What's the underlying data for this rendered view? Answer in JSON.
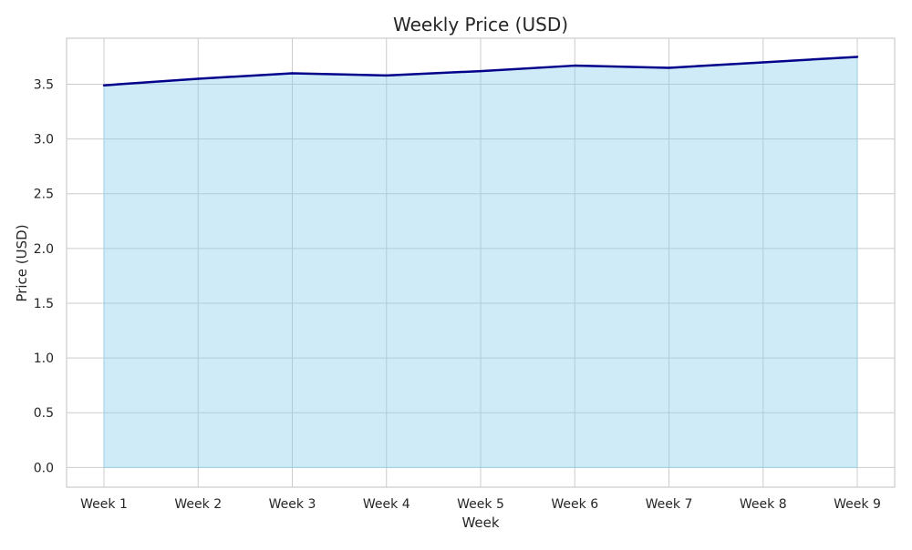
{
  "chart_data": {
    "type": "area",
    "title": "Weekly Price (USD)",
    "xlabel": "Week",
    "ylabel": "Price (USD)",
    "categories": [
      "Week 1",
      "Week 2",
      "Week 3",
      "Week 4",
      "Week 5",
      "Week 6",
      "Week 7",
      "Week 8",
      "Week 9"
    ],
    "values": [
      3.49,
      3.55,
      3.6,
      3.58,
      3.62,
      3.67,
      3.65,
      3.7,
      3.75
    ],
    "ylim": [
      -0.18,
      3.92
    ],
    "yticks": [
      "0.0",
      "0.5",
      "1.0",
      "1.5",
      "2.0",
      "2.5",
      "3.0",
      "3.5"
    ],
    "grid": true,
    "legend": "none",
    "colors": {
      "line": "#00008b",
      "fill": "#87ceeb",
      "grid": "#cccccc",
      "frame": "#cccccc"
    }
  }
}
